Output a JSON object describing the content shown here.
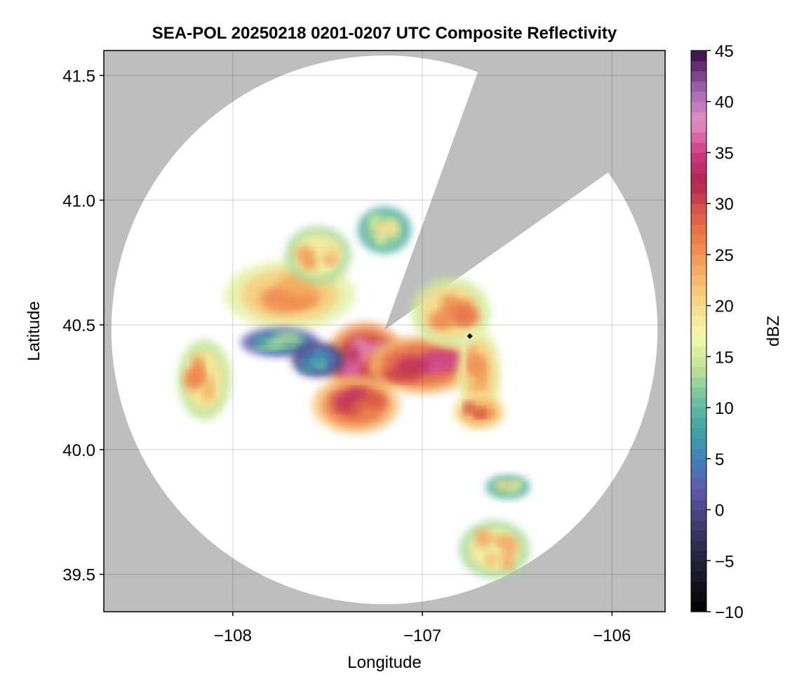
{
  "chart_data": {
    "type": "heatmap",
    "title": "SEA-POL 20250218 0201-0207 UTC Composite Reflectivity",
    "xlabel": "Longitude",
    "ylabel": "Latitude",
    "xlim": [
      -108.68,
      -105.72
    ],
    "ylim": [
      39.35,
      41.6
    ],
    "xticks": [
      {
        "value": -108,
        "label": "−108"
      },
      {
        "value": -107,
        "label": "−107"
      },
      {
        "value": -106,
        "label": "−106"
      }
    ],
    "yticks": [
      {
        "value": 39.5,
        "label": "39.5"
      },
      {
        "value": 40.0,
        "label": "40.0"
      },
      {
        "value": 40.5,
        "label": "40.5"
      },
      {
        "value": 41.0,
        "label": "41.0"
      },
      {
        "value": 41.5,
        "label": "41.5"
      }
    ],
    "grid": true,
    "background_color": "#bebebe",
    "radar": {
      "center_lon": -107.2,
      "center_lat": 40.48,
      "radius_lon": 1.44,
      "radius_lat": 1.1,
      "blocked_sector_deg": [
        20,
        55
      ],
      "coverage_color": "#ffffff"
    },
    "marker": {
      "lon": -106.75,
      "lat": 40.455,
      "shape": "diamond",
      "color": "#000000"
    },
    "colorbar": {
      "label": "dBZ",
      "range": [
        -10,
        45
      ],
      "ticks": [
        {
          "value": -10,
          "label": "−10"
        },
        {
          "value": -5,
          "label": "−5"
        },
        {
          "value": 0,
          "label": "0"
        },
        {
          "value": 5,
          "label": "5"
        },
        {
          "value": 10,
          "label": "10"
        },
        {
          "value": 15,
          "label": "15"
        },
        {
          "value": 20,
          "label": "20"
        },
        {
          "value": 25,
          "label": "25"
        },
        {
          "value": 30,
          "label": "30"
        },
        {
          "value": 35,
          "label": "35"
        },
        {
          "value": 40,
          "label": "40"
        },
        {
          "value": 45,
          "label": "45"
        }
      ],
      "color_stops": [
        {
          "value": -10,
          "color": "#000000"
        },
        {
          "value": -6,
          "color": "#1b1b2b"
        },
        {
          "value": -2,
          "color": "#3c3566"
        },
        {
          "value": 2,
          "color": "#5e59ad"
        },
        {
          "value": 5,
          "color": "#3f82b9"
        },
        {
          "value": 8,
          "color": "#3fa5a3"
        },
        {
          "value": 11,
          "color": "#73c3a0"
        },
        {
          "value": 14,
          "color": "#c0e391"
        },
        {
          "value": 17,
          "color": "#f6f9ad"
        },
        {
          "value": 20,
          "color": "#f8da8c"
        },
        {
          "value": 23,
          "color": "#f5b466"
        },
        {
          "value": 26,
          "color": "#ef854c"
        },
        {
          "value": 29,
          "color": "#dd5c46"
        },
        {
          "value": 32,
          "color": "#b3244c"
        },
        {
          "value": 35,
          "color": "#cd3a86"
        },
        {
          "value": 38,
          "color": "#e490c3"
        },
        {
          "value": 41,
          "color": "#a46ab4"
        },
        {
          "value": 45,
          "color": "#350c44"
        }
      ]
    },
    "echo_regions": [
      {
        "lon": -107.3,
        "lat": 40.36,
        "rlon": 0.18,
        "rlat": 0.13,
        "dbz": 33
      },
      {
        "lon": -107.0,
        "lat": 40.34,
        "rlon": 0.25,
        "rlat": 0.1,
        "dbz": 31
      },
      {
        "lon": -107.35,
        "lat": 40.18,
        "rlon": 0.2,
        "rlat": 0.1,
        "dbz": 30
      },
      {
        "lon": -107.7,
        "lat": 40.62,
        "rlon": 0.3,
        "rlat": 0.12,
        "dbz": 24
      },
      {
        "lon": -107.55,
        "lat": 40.78,
        "rlon": 0.15,
        "rlat": 0.1,
        "dbz": 21
      },
      {
        "lon": -106.85,
        "lat": 40.55,
        "rlon": 0.18,
        "rlat": 0.12,
        "dbz": 23
      },
      {
        "lon": -106.7,
        "lat": 40.3,
        "rlon": 0.1,
        "rlat": 0.16,
        "dbz": 24
      },
      {
        "lon": -107.75,
        "lat": 40.43,
        "rlon": 0.18,
        "rlat": 0.05,
        "dbz": 10
      },
      {
        "lon": -107.55,
        "lat": 40.36,
        "rlon": 0.12,
        "rlat": 0.06,
        "dbz": 7
      },
      {
        "lon": -108.15,
        "lat": 40.28,
        "rlon": 0.12,
        "rlat": 0.14,
        "dbz": 22
      },
      {
        "lon": -107.2,
        "lat": 40.88,
        "rlon": 0.12,
        "rlat": 0.08,
        "dbz": 16
      },
      {
        "lon": -106.7,
        "lat": 40.15,
        "rlon": 0.12,
        "rlat": 0.06,
        "dbz": 27
      },
      {
        "lon": -106.62,
        "lat": 39.6,
        "rlon": 0.16,
        "rlat": 0.1,
        "dbz": 21
      },
      {
        "lon": -106.55,
        "lat": 39.85,
        "rlon": 0.1,
        "rlat": 0.04,
        "dbz": 16
      }
    ]
  }
}
